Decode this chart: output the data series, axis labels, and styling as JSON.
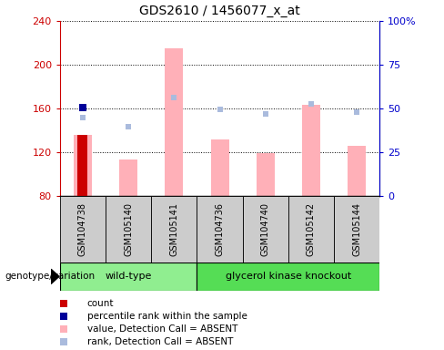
{
  "title": "GDS2610 / 1456077_x_at",
  "samples": [
    "GSM104738",
    "GSM105140",
    "GSM105141",
    "GSM104736",
    "GSM104740",
    "GSM105142",
    "GSM105144"
  ],
  "groups": [
    "wild-type",
    "wild-type",
    "wild-type",
    "glycerol kinase knockout",
    "glycerol kinase knockout",
    "glycerol kinase knockout",
    "glycerol kinase knockout"
  ],
  "group_colors": {
    "wild-type": "#90EE90",
    "glycerol kinase knockout": "#55DD55"
  },
  "bar_bottom": 80,
  "ylim_left": [
    80,
    240
  ],
  "ylim_right": [
    0,
    100
  ],
  "yticks_left": [
    80,
    120,
    160,
    200,
    240
  ],
  "yticks_right": [
    0,
    25,
    50,
    75,
    100
  ],
  "yticklabels_right": [
    "0",
    "25",
    "50",
    "75",
    "100%"
  ],
  "values_absent": [
    136,
    113,
    215,
    132,
    119,
    163,
    126
  ],
  "ranks_absent": [
    152,
    143,
    170,
    159,
    155,
    164,
    157
  ],
  "count_sample_idx": 0,
  "percentile_value": 161,
  "percentile_sample_idx": 0,
  "colors": {
    "count": "#CC0000",
    "percentile": "#000099",
    "value_absent": "#FFB0B8",
    "rank_absent": "#AABBDD",
    "left_axis": "#CC0000",
    "right_axis": "#0000CC"
  },
  "legend_labels": [
    "count",
    "percentile rank within the sample",
    "value, Detection Call = ABSENT",
    "rank, Detection Call = ABSENT"
  ],
  "group_label": "genotype/variation",
  "sample_bg": "#CCCCCC"
}
